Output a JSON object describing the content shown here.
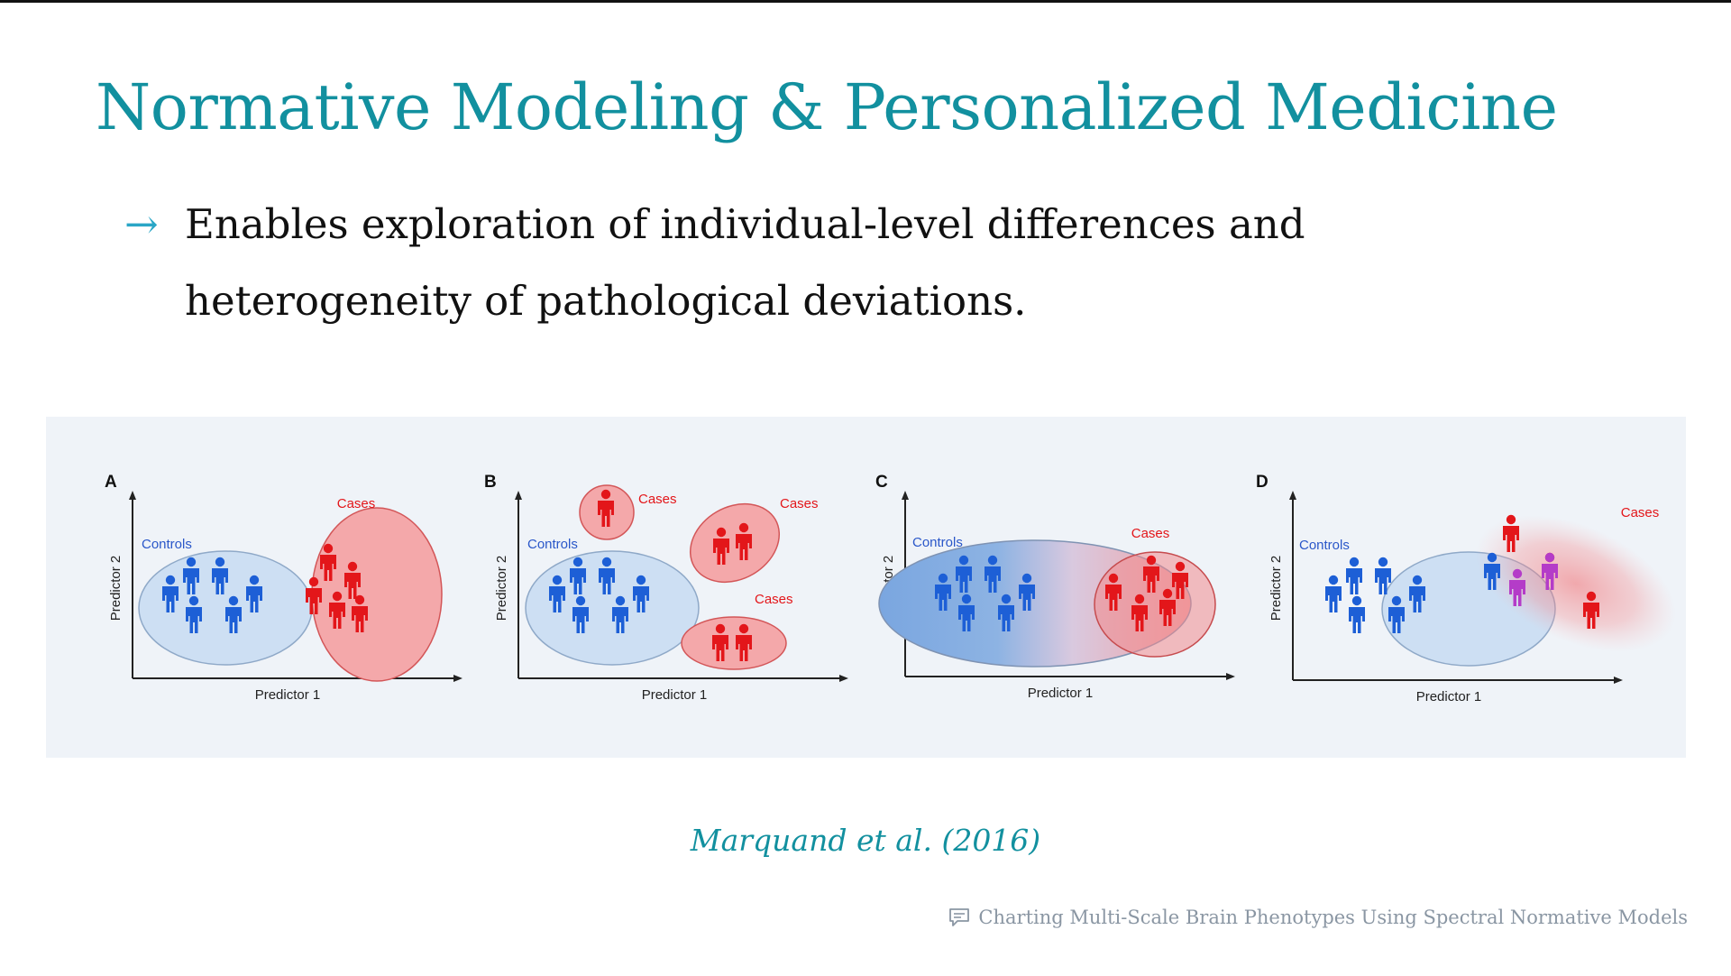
{
  "slide": {
    "title": "Normative Modeling & Personalized Medicine",
    "bullet_arrow": "→",
    "bullet_text": "Enables exploration of individual-level differences and heterogeneity of pathological deviations.",
    "citation": "Marquand et al. (2016)",
    "footer_text": "Charting Multi-Scale Brain Phenotypes Using Spectral Normative Models",
    "footer_icon": "comment-icon"
  },
  "figure": {
    "axis_x_label": "Predictor 1",
    "axis_y_label": "Predictor 2",
    "controls_label": "Controls",
    "cases_label": "Cases",
    "colors": {
      "controls": "#1d5fd6",
      "cases": "#e3161a",
      "outlier": "#b43cc8"
    },
    "panels": [
      {
        "letter": "A",
        "cases_groups": 1
      },
      {
        "letter": "B",
        "cases_groups": 3
      },
      {
        "letter": "C",
        "cases_groups": 1
      },
      {
        "letter": "D",
        "cases_groups": 1
      }
    ]
  }
}
